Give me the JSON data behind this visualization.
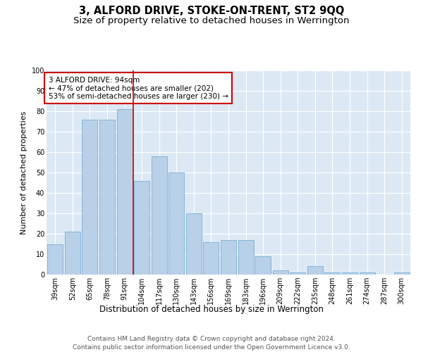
{
  "title": "3, ALFORD DRIVE, STOKE-ON-TRENT, ST2 9QQ",
  "subtitle": "Size of property relative to detached houses in Werrington",
  "xlabel": "Distribution of detached houses by size in Werrington",
  "ylabel": "Number of detached properties",
  "categories": [
    "39sqm",
    "52sqm",
    "65sqm",
    "78sqm",
    "91sqm",
    "104sqm",
    "117sqm",
    "130sqm",
    "143sqm",
    "156sqm",
    "169sqm",
    "183sqm",
    "196sqm",
    "209sqm",
    "222sqm",
    "235sqm",
    "248sqm",
    "261sqm",
    "274sqm",
    "287sqm",
    "300sqm"
  ],
  "values": [
    15,
    21,
    76,
    76,
    81,
    46,
    58,
    50,
    30,
    16,
    17,
    17,
    9,
    2,
    1,
    4,
    1,
    1,
    1,
    0,
    1
  ],
  "bar_color": "#b8d0e8",
  "bar_edge_color": "#7aafd4",
  "vline_color": "#cc0000",
  "annotation_text": "3 ALFORD DRIVE: 94sqm\n← 47% of detached houses are smaller (202)\n53% of semi-detached houses are larger (230) →",
  "annotation_box_color": "#ffffff",
  "annotation_box_edge": "#cc0000",
  "plot_bg_color": "#dce9f5",
  "ylim": [
    0,
    100
  ],
  "yticks": [
    0,
    10,
    20,
    30,
    40,
    50,
    60,
    70,
    80,
    90,
    100
  ],
  "footer": "Contains HM Land Registry data © Crown copyright and database right 2024.\nContains public sector information licensed under the Open Government Licence v3.0.",
  "title_fontsize": 10.5,
  "subtitle_fontsize": 9.5,
  "xlabel_fontsize": 8.5,
  "ylabel_fontsize": 8,
  "tick_fontsize": 7,
  "footer_fontsize": 6.5,
  "annotation_fontsize": 7.5
}
